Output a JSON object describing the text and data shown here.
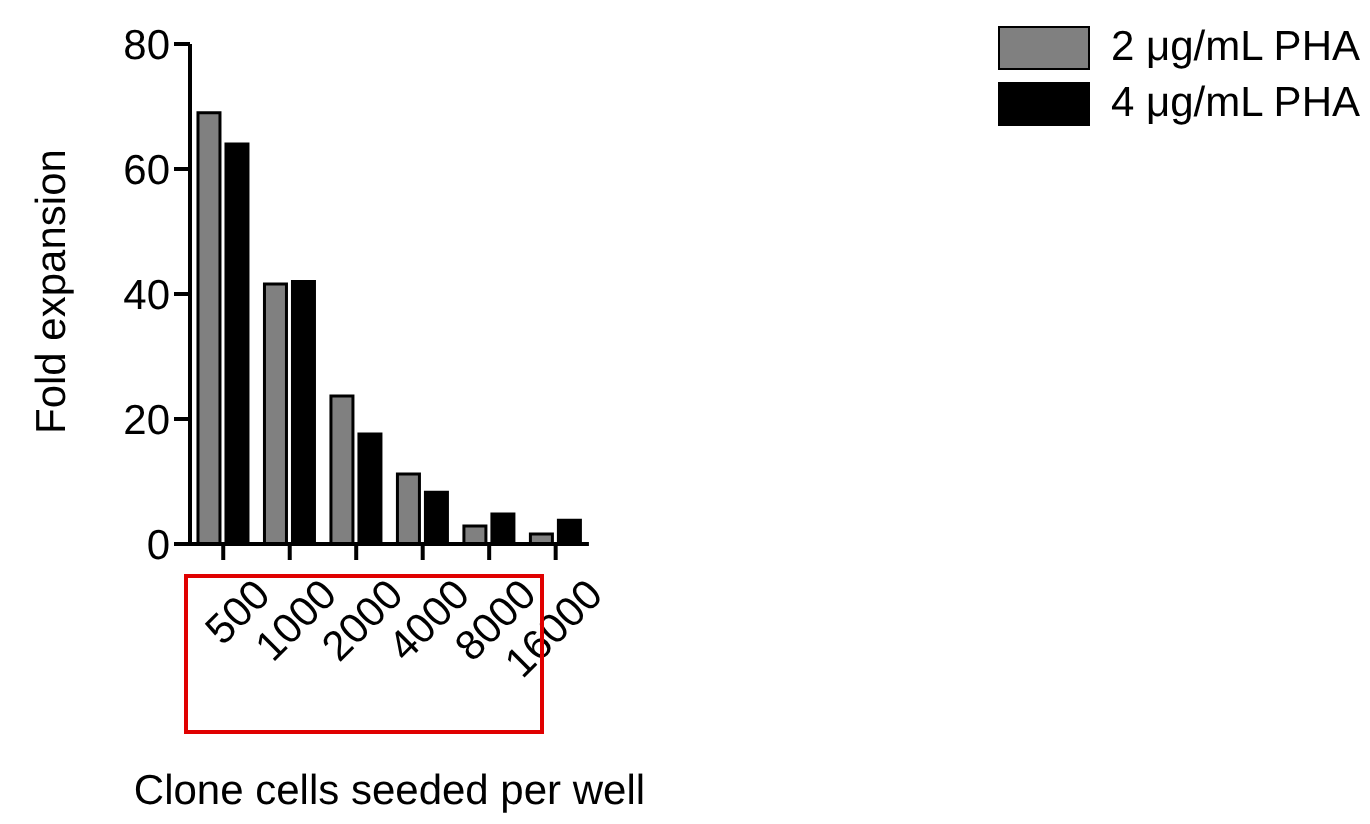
{
  "chart_data": {
    "type": "bar",
    "xlabel": "Clone cells seeded per well",
    "ylabel": "Fold expansion",
    "categories": [
      "500",
      "1000",
      "2000",
      "4000",
      "8000",
      "16000"
    ],
    "series": [
      {
        "name": "2 μg/mL PHA",
        "color": "#808080",
        "values": [
          69,
          41.6,
          23.7,
          11.2,
          2.9,
          1.6
        ]
      },
      {
        "name": "4 μg/mL PHA",
        "color": "#000000",
        "values": [
          64,
          42,
          17.6,
          8.3,
          4.8,
          3.8
        ]
      }
    ],
    "ylim": [
      0,
      80
    ],
    "yticks": [
      0,
      20,
      40,
      60,
      80
    ],
    "grid": false,
    "legend": "top right"
  }
}
